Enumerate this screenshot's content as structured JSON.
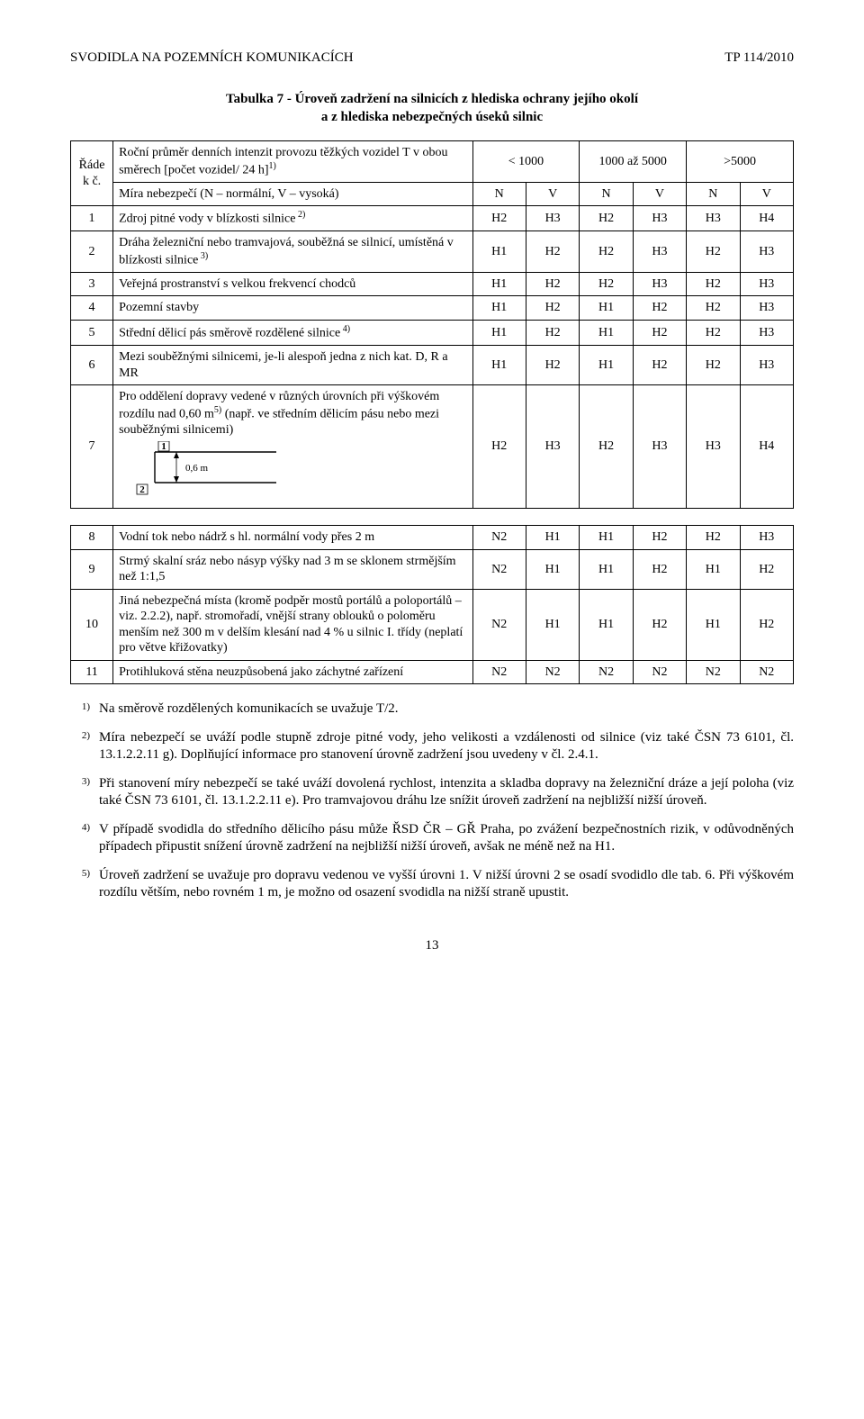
{
  "header": {
    "left": "SVODIDLA NA POZEMNÍCH KOMUNIKACÍCH",
    "right": "TP 114/2010"
  },
  "tableTitle1": "Tabulka 7 - Úroveň zadržení na silnicích z hlediska ochrany jejího okolí",
  "tableTitle2": "a z hlediska nebezpečných úseků silnic",
  "colHead": {
    "radek": "Řáde k č.",
    "provoz": "Roční průměr denních intenzit provozu těžkých vozidel T v obou směrech [počet vozidel/ 24 h]",
    "provozSup": "1)",
    "c1": "< 1000",
    "c2": "1000 až 5000",
    "c3": ">5000"
  },
  "mira": {
    "label": "Míra nebezpečí (N – normální, V – vysoká)",
    "v": [
      "N",
      "V",
      "N",
      "V",
      "N",
      "V"
    ]
  },
  "rows1": [
    {
      "n": "1",
      "desc": "Zdroj pitné vody v blízkosti silnice",
      "sup": "2)",
      "v": [
        "H2",
        "H3",
        "H2",
        "H3",
        "H3",
        "H4"
      ]
    },
    {
      "n": "2",
      "desc": "Dráha železniční nebo tramvajová, souběžná se silnicí, umístěná v blízkosti silnice",
      "sup": "3)",
      "v": [
        "H1",
        "H2",
        "H2",
        "H3",
        "H2",
        "H3"
      ]
    },
    {
      "n": "3",
      "desc": "Veřejná prostranství s velkou frekvencí chodců",
      "sup": "",
      "v": [
        "H1",
        "H2",
        "H2",
        "H3",
        "H2",
        "H3"
      ]
    },
    {
      "n": "4",
      "desc": "Pozemní stavby",
      "sup": "",
      "v": [
        "H1",
        "H2",
        "H1",
        "H2",
        "H2",
        "H3"
      ]
    },
    {
      "n": "5",
      "desc": "Střední dělicí pás směrově rozdělené silnice",
      "sup": "4)",
      "v": [
        "H1",
        "H2",
        "H1",
        "H2",
        "H2",
        "H3"
      ]
    },
    {
      "n": "6",
      "desc": "Mezi souběžnými silnicemi, je-li alespoň jedna z nich kat. D, R a MR",
      "sup": "",
      "v": [
        "H1",
        "H2",
        "H1",
        "H2",
        "H2",
        "H3"
      ]
    }
  ],
  "row7": {
    "n": "7",
    "desc": "Pro oddělení dopravy vedené v různých úrovních při výškovém rozdílu nad 0,60 m",
    "sup": "5)",
    "desc2": " (např. ve středním dělicím pásu nebo mezi souběžnými silnicemi)",
    "svg": {
      "label1": "1",
      "label2": "2",
      "dim": "0,6 m"
    },
    "v": [
      "H2",
      "H3",
      "H2",
      "H3",
      "H3",
      "H4"
    ]
  },
  "rows2": [
    {
      "n": "8",
      "desc": "Vodní tok nebo nádrž s hl. normální vody přes 2 m",
      "sup": "",
      "v": [
        "N2",
        "H1",
        "H1",
        "H2",
        "H2",
        "H3"
      ]
    },
    {
      "n": "9",
      "desc": "Strmý skalní sráz nebo násyp výšky nad 3 m se sklonem strmějším než 1:1,5",
      "sup": "",
      "v": [
        "N2",
        "H1",
        "H1",
        "H2",
        "H1",
        "H2"
      ]
    },
    {
      "n": "10",
      "desc": "Jiná nebezpečná místa (kromě podpěr mostů portálů a poloportálů – viz. 2.2.2), např. stromořadí, vnější strany oblouků o poloměru menším než 300 m v delším klesání nad 4 % u silnic I. třídy (neplatí pro větve křižovatky)",
      "sup": "",
      "v": [
        "N2",
        "H1",
        "H1",
        "H2",
        "H1",
        "H2"
      ]
    },
    {
      "n": "11",
      "desc": "Protihluková stěna neuzpůsobená jako záchytné zařízení",
      "sup": "",
      "v": [
        "N2",
        "N2",
        "N2",
        "N2",
        "N2",
        "N2"
      ]
    }
  ],
  "footnotes": [
    {
      "n": "1)",
      "t": "Na směrově rozdělených komunikacích se uvažuje T/2."
    },
    {
      "n": "2)",
      "t": "Míra nebezpečí se uváží podle stupně zdroje pitné vody, jeho velikosti a vzdálenosti od silnice (viz také ČSN 73 6101, čl. 13.1.2.2.11 g). Doplňující informace pro stanovení úrovně zadržení jsou uvedeny v čl. 2.4.1."
    },
    {
      "n": "3)",
      "t": "Při stanovení míry nebezpečí se také uváží dovolená rychlost, intenzita a skladba dopravy na železniční dráze a její poloha (viz také ČSN 73 6101, čl. 13.1.2.2.11 e). Pro tramvajovou dráhu lze snížit úroveň zadržení na nejbližší nižší úroveň."
    },
    {
      "n": "4)",
      "t": "V případě svodidla do středního dělicího pásu může ŘSD ČR – GŘ Praha, po zvážení bezpečnostních rizik, v odůvodněných případech připustit snížení úrovně zadržení na nejbližší nižší úroveň, avšak ne méně než na H1."
    },
    {
      "n": "5)",
      "t": "Úroveň zadržení se uvažuje pro dopravu vedenou ve vyšší úrovni 1. V nižší úrovni 2 se osadí svodidlo dle tab. 6. Při výškovém rozdílu větším, nebo rovném 1 m, je možno od osazení svodidla na nižší straně upustit."
    }
  ],
  "pageNumber": "13"
}
